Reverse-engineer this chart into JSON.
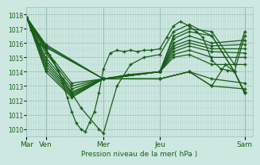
{
  "xlabel": "Pression niveau de la mer( hPa )",
  "ylim": [
    1009.5,
    1018.5
  ],
  "yticks": [
    1010,
    1011,
    1012,
    1013,
    1014,
    1015,
    1016,
    1017,
    1018
  ],
  "background_color": "#cce8e0",
  "grid_color_major": "#9bbfb8",
  "grid_color_minor": "#b8d8d0",
  "line_color": "#1a5c1a",
  "xtick_labels": [
    "Mar",
    "Ven",
    "Mer",
    "Jeu",
    "Sam"
  ],
  "xtick_positions": [
    0.0,
    0.085,
    0.34,
    0.59,
    0.965
  ],
  "xlim": [
    0.0,
    1.0
  ],
  "fig_bg": "#cce8e0",
  "lines": [
    {
      "x": [
        0.0,
        0.02,
        0.04,
        0.06,
        0.085,
        0.1,
        0.12,
        0.14,
        0.16,
        0.18,
        0.2,
        0.22,
        0.24,
        0.26,
        0.28,
        0.3,
        0.32,
        0.34,
        0.37,
        0.4,
        0.43,
        0.46,
        0.49,
        0.52,
        0.55,
        0.59,
        0.62,
        0.65,
        0.68,
        0.72,
        0.75,
        0.78,
        0.82,
        0.86,
        0.89,
        0.92,
        0.965
      ],
      "y": [
        1017.8,
        1016.9,
        1016.2,
        1015.9,
        1015.6,
        1015.2,
        1014.7,
        1014.1,
        1013.2,
        1012.2,
        1011.2,
        1010.4,
        1010.0,
        1009.8,
        1010.5,
        1011.2,
        1012.5,
        1014.2,
        1015.3,
        1015.5,
        1015.4,
        1015.5,
        1015.4,
        1015.5,
        1015.5,
        1015.6,
        1016.4,
        1017.2,
        1017.5,
        1017.2,
        1016.8,
        1016.4,
        1014.8,
        1014.2,
        1014.1,
        1014.0,
        1012.5
      ]
    },
    {
      "x": [
        0.0,
        0.085,
        0.16,
        0.24,
        0.32,
        0.34,
        0.4,
        0.46,
        0.52,
        0.59,
        0.65,
        0.72,
        0.82,
        0.92,
        0.965
      ],
      "y": [
        1017.8,
        1015.6,
        1013.5,
        1011.5,
        1010.0,
        1009.7,
        1013.0,
        1014.5,
        1015.0,
        1015.2,
        1016.8,
        1017.3,
        1016.5,
        1014.0,
        1012.5
      ]
    },
    {
      "x": [
        0.0,
        0.085,
        0.2,
        0.34,
        0.45,
        0.59,
        0.65,
        0.72,
        0.82,
        0.92,
        0.965
      ],
      "y": [
        1017.8,
        1015.5,
        1013.2,
        1013.5,
        1013.8,
        1014.0,
        1016.5,
        1017.0,
        1016.8,
        1014.5,
        1016.8
      ]
    },
    {
      "x": [
        0.0,
        0.085,
        0.2,
        0.34,
        0.59,
        0.65,
        0.72,
        0.82,
        0.92,
        0.965
      ],
      "y": [
        1017.8,
        1015.3,
        1013.0,
        1013.5,
        1014.0,
        1016.3,
        1016.8,
        1016.5,
        1014.0,
        1016.5
      ]
    },
    {
      "x": [
        0.0,
        0.085,
        0.2,
        0.34,
        0.59,
        0.65,
        0.72,
        0.82,
        0.965
      ],
      "y": [
        1017.8,
        1015.0,
        1012.8,
        1013.5,
        1014.0,
        1016.0,
        1016.5,
        1016.0,
        1016.2
      ]
    },
    {
      "x": [
        0.0,
        0.085,
        0.2,
        0.34,
        0.59,
        0.65,
        0.72,
        0.82,
        0.965
      ],
      "y": [
        1017.8,
        1014.8,
        1012.6,
        1013.5,
        1014.0,
        1015.8,
        1016.2,
        1015.8,
        1015.9
      ]
    },
    {
      "x": [
        0.0,
        0.085,
        0.2,
        0.34,
        0.59,
        0.65,
        0.72,
        0.82,
        0.965
      ],
      "y": [
        1017.8,
        1014.6,
        1012.5,
        1013.5,
        1014.0,
        1015.6,
        1016.0,
        1015.6,
        1015.6
      ]
    },
    {
      "x": [
        0.0,
        0.085,
        0.2,
        0.34,
        0.59,
        0.65,
        0.72,
        0.82,
        0.965
      ],
      "y": [
        1017.8,
        1014.4,
        1012.4,
        1013.5,
        1014.0,
        1015.4,
        1015.8,
        1015.4,
        1015.3
      ]
    },
    {
      "x": [
        0.0,
        0.085,
        0.2,
        0.34,
        0.59,
        0.65,
        0.72,
        0.82,
        0.965
      ],
      "y": [
        1017.8,
        1014.2,
        1012.3,
        1013.5,
        1014.0,
        1015.2,
        1015.5,
        1015.0,
        1015.0
      ]
    },
    {
      "x": [
        0.0,
        0.085,
        0.2,
        0.34,
        0.59,
        0.65,
        0.72,
        0.82,
        0.965
      ],
      "y": [
        1017.8,
        1014.0,
        1012.2,
        1013.5,
        1014.0,
        1015.0,
        1015.2,
        1014.5,
        1014.5
      ]
    },
    {
      "x": [
        0.0,
        0.085,
        0.34,
        0.59,
        0.72,
        0.82,
        0.965
      ],
      "y": [
        1017.8,
        1015.7,
        1013.5,
        1013.5,
        1014.0,
        1013.5,
        1013.2
      ]
    },
    {
      "x": [
        0.0,
        0.085,
        0.34,
        0.59,
        0.72,
        0.82,
        0.965
      ],
      "y": [
        1017.8,
        1015.8,
        1013.5,
        1013.5,
        1014.0,
        1013.0,
        1012.8
      ]
    },
    {
      "x": [
        0.0,
        0.085,
        0.34,
        0.59,
        0.72,
        0.82,
        0.88,
        0.92,
        0.965
      ],
      "y": [
        1017.8,
        1015.9,
        1013.5,
        1013.5,
        1014.0,
        1013.0,
        1014.5,
        1014.0,
        1012.6
      ]
    }
  ]
}
